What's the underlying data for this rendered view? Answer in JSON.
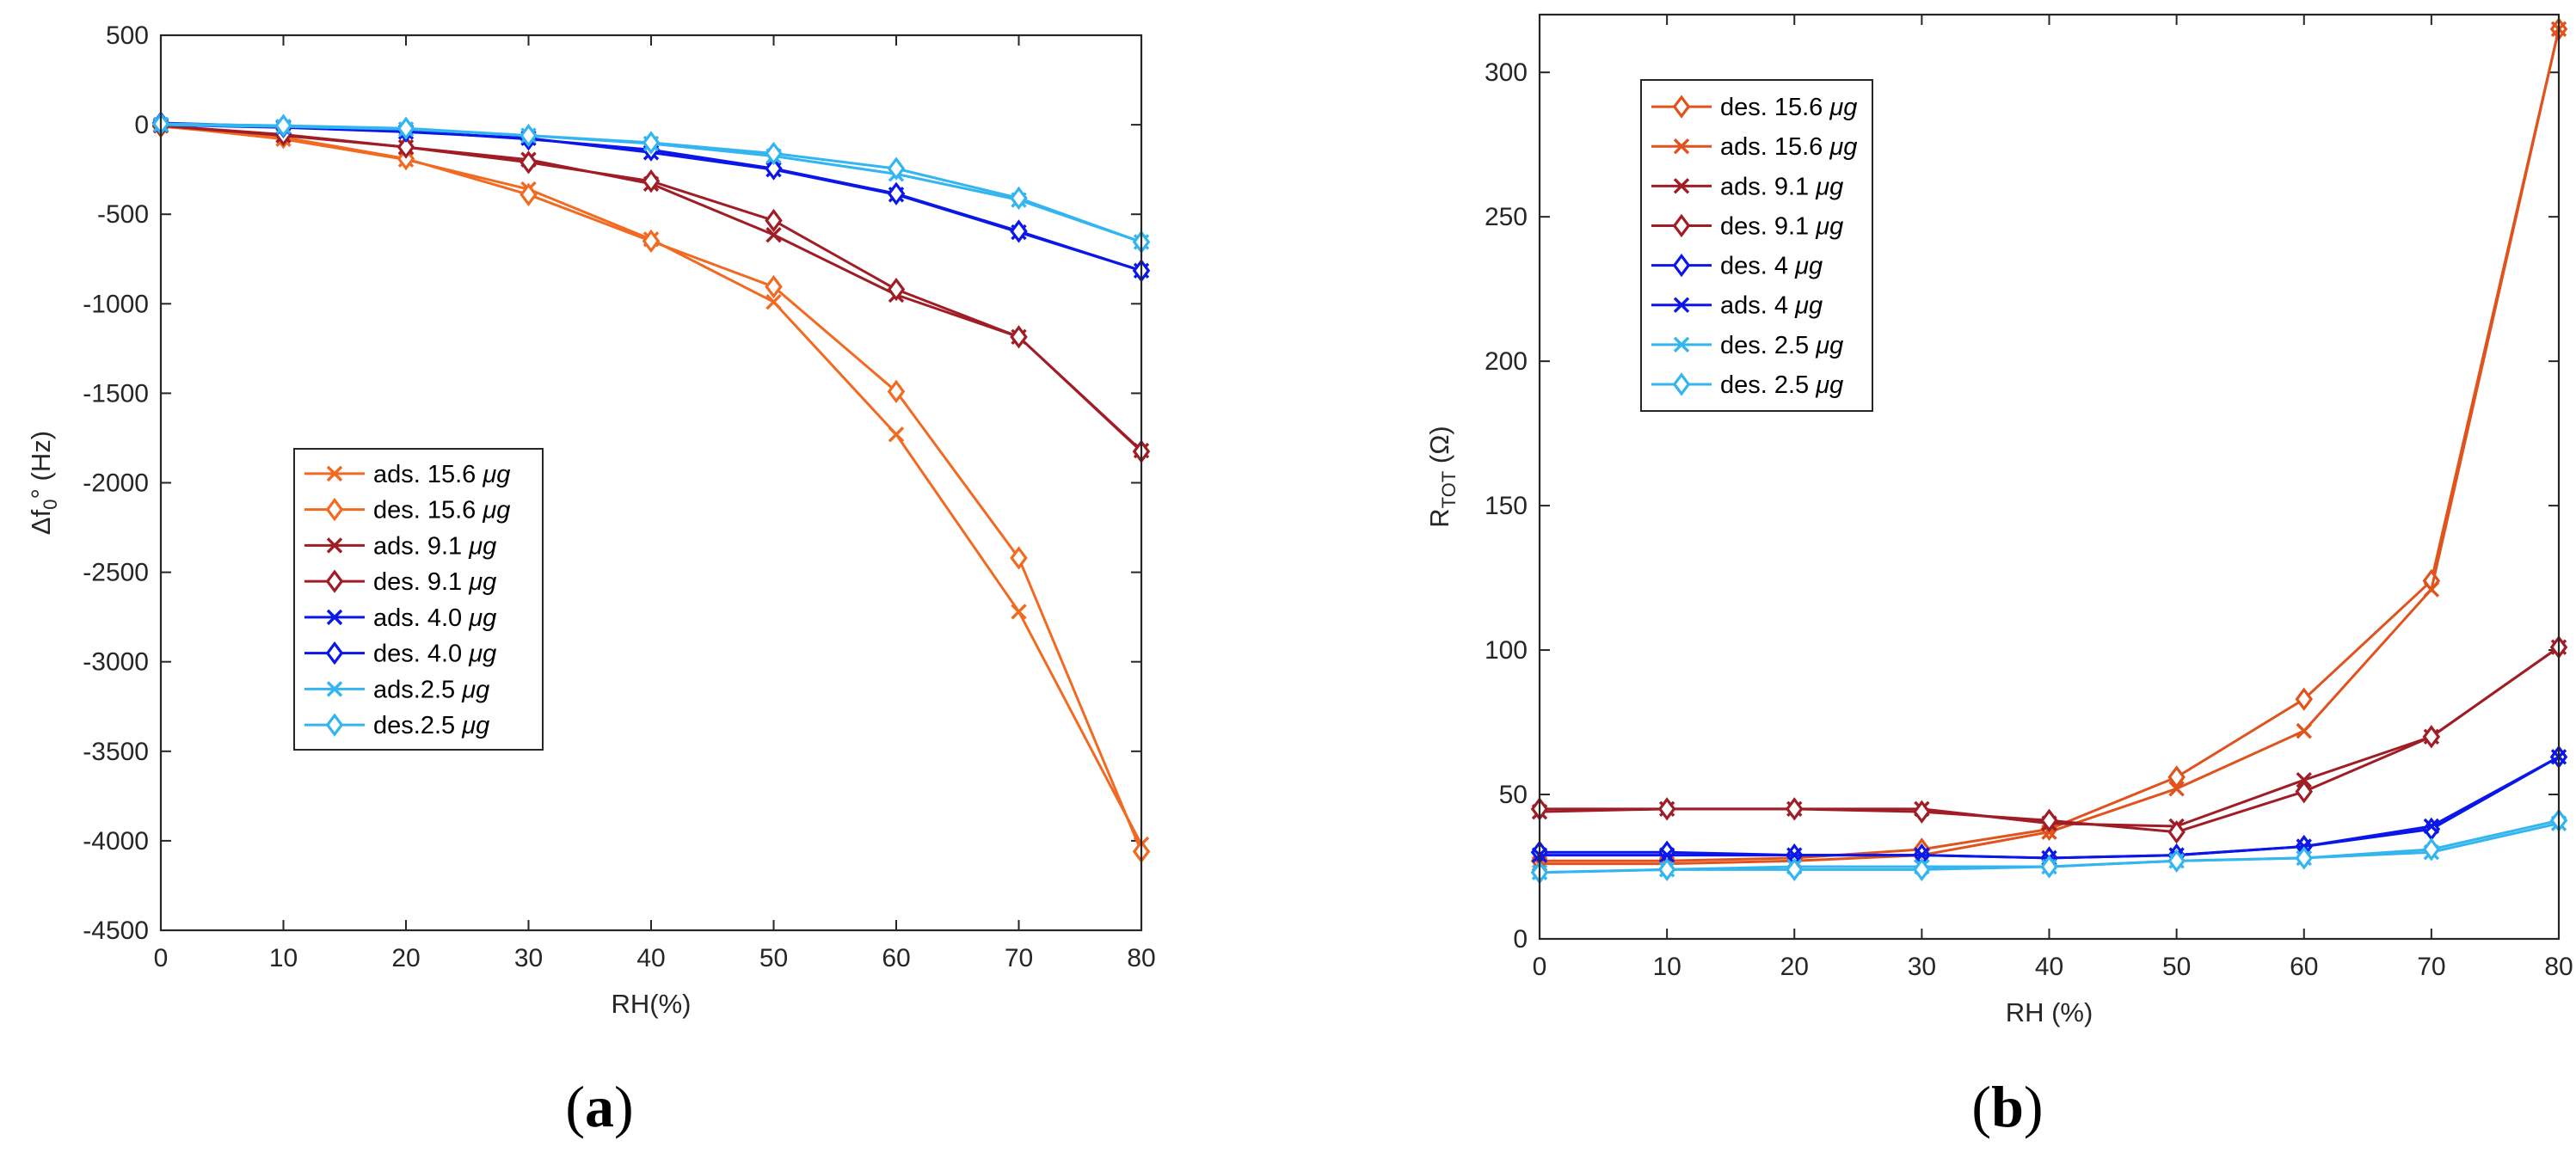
{
  "chart_data": [
    {
      "type": "line",
      "panel_label": "a",
      "xlabel": "RH(%)",
      "ylabel": "Δf",
      "ylabel_sub": "0",
      "ylabel_rest": "° (Hz)",
      "xlim": [
        0,
        80
      ],
      "ylim": [
        -4500,
        500
      ],
      "xticks": [
        0,
        10,
        20,
        30,
        40,
        50,
        60,
        70,
        80
      ],
      "yticks": [
        500,
        0,
        -500,
        -1000,
        -1500,
        -2000,
        -2500,
        -3000,
        -3500,
        -4000,
        -4500
      ],
      "legend_position": "center-left",
      "x": [
        0,
        10,
        20,
        30,
        40,
        50,
        60,
        70,
        80
      ],
      "series": [
        {
          "name": "ads. 15.6 ",
          "unit": "μg",
          "marker": "x",
          "color": "#F26A21",
          "values": [
            -5,
            -80,
            -195,
            -360,
            -640,
            -990,
            -1730,
            -2720,
            -4020
          ]
        },
        {
          "name": "des. 15.6 ",
          "unit": "μg",
          "marker": "diamond",
          "color": "#F26A21",
          "values": [
            -10,
            -70,
            -190,
            -390,
            -650,
            -905,
            -1490,
            -2420,
            -4060
          ]
        },
        {
          "name": "ads. 9.1 ",
          "unit": "μg",
          "marker": "x",
          "color": "#A01D26",
          "values": [
            -5,
            -60,
            -125,
            -195,
            -330,
            -615,
            -950,
            -1185,
            -1820
          ]
        },
        {
          "name": "des. 9.1 ",
          "unit": "μg",
          "marker": "diamond",
          "color": "#A01D26",
          "values": [
            -5,
            -55,
            -125,
            -210,
            -315,
            -535,
            -920,
            -1185,
            -1825
          ]
        },
        {
          "name": "ads. 4.0 ",
          "unit": "μg",
          "marker": "x",
          "color": "#0A17E8",
          "values": [
            0,
            -15,
            -40,
            -75,
            -155,
            -250,
            -390,
            -600,
            -815
          ]
        },
        {
          "name": "des. 4.0 ",
          "unit": "μg",
          "marker": "diamond",
          "color": "#0A17E8",
          "values": [
            10,
            -10,
            -35,
            -80,
            -140,
            -245,
            -385,
            -595,
            -815
          ]
        },
        {
          "name": "ads.2.5 ",
          "unit": "μg",
          "marker": "x",
          "color": "#33B5F0",
          "values": [
            0,
            -10,
            -25,
            -60,
            -105,
            -175,
            -275,
            -420,
            -655
          ]
        },
        {
          "name": "des.2.5 ",
          "unit": "μg",
          "marker": "diamond",
          "color": "#33B5F0",
          "values": [
            5,
            -5,
            -20,
            -60,
            -100,
            -160,
            -245,
            -410,
            -655
          ]
        }
      ]
    },
    {
      "type": "line",
      "panel_label": "b",
      "xlabel": "RH (%)",
      "ylabel": "R",
      "ylabel_sub": "TOT",
      "ylabel_rest": " (Ω)",
      "xlim": [
        0,
        80
      ],
      "ylim": [
        0,
        320
      ],
      "xticks": [
        0,
        10,
        20,
        30,
        40,
        50,
        60,
        70,
        80
      ],
      "yticks": [
        0,
        50,
        100,
        150,
        200,
        250,
        300
      ],
      "legend_position": "top-left",
      "x": [
        0,
        10,
        20,
        30,
        40,
        50,
        60,
        70,
        80
      ],
      "series": [
        {
          "name": "des. 15.6 ",
          "unit": "μg",
          "marker": "diamond",
          "color": "#E0531C",
          "values": [
            27,
            27,
            28,
            31,
            38,
            56,
            83,
            124,
            315
          ]
        },
        {
          "name": "ads. 15.6 ",
          "unit": "μg",
          "marker": "x",
          "color": "#E0531C",
          "values": [
            26,
            26,
            27,
            29,
            37,
            52,
            72,
            121,
            315
          ]
        },
        {
          "name": "ads. 9.1 ",
          "unit": "μg",
          "marker": "x",
          "color": "#A01D26",
          "values": [
            44,
            45,
            45,
            45,
            40,
            39,
            55,
            70,
            101
          ]
        },
        {
          "name": "des. 9.1 ",
          "unit": "μg",
          "marker": "diamond",
          "color": "#A01D26",
          "values": [
            45,
            45,
            45,
            44,
            41,
            37,
            51,
            70,
            101
          ]
        },
        {
          "name": "des. 4 ",
          "unit": "μg",
          "marker": "diamond",
          "color": "#0A17E8",
          "values": [
            30,
            30,
            29,
            29,
            28,
            29,
            32,
            38,
            63
          ]
        },
        {
          "name": "ads. 4 ",
          "unit": "μg",
          "marker": "x",
          "color": "#0A17E8",
          "values": [
            29,
            29,
            29,
            29,
            28,
            29,
            32,
            39,
            63
          ]
        },
        {
          "name": "des. 2.5 ",
          "unit": "μg",
          "marker": "x",
          "color": "#33B5F0",
          "values": [
            23,
            24,
            25,
            25,
            25,
            27,
            28,
            30,
            40
          ]
        },
        {
          "name": "des. 2.5 ",
          "unit": "μg",
          "marker": "diamond",
          "color": "#33B5F0",
          "values": [
            23,
            24,
            24,
            24,
            25,
            27,
            28,
            31,
            41
          ]
        }
      ]
    }
  ]
}
